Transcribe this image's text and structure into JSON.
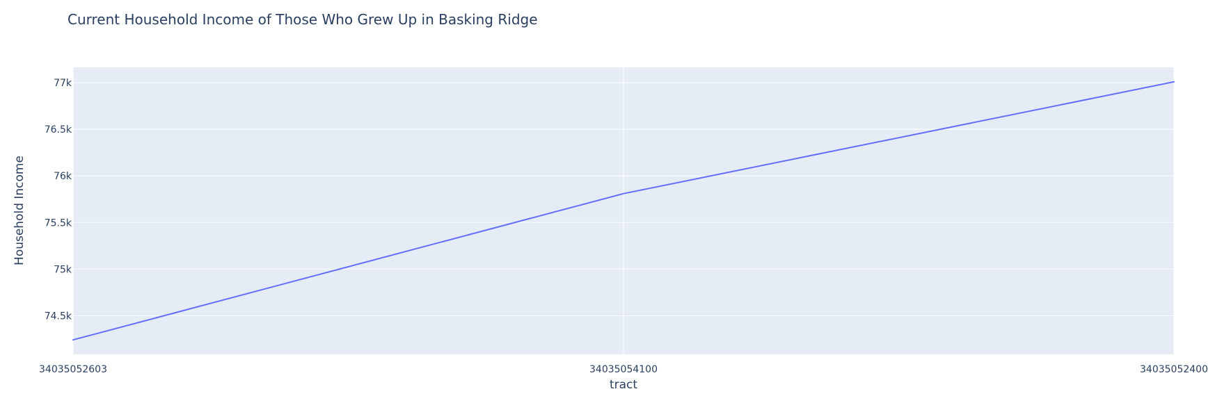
{
  "chart_data": {
    "type": "line",
    "title": "Current Household Income of Those Who Grew Up in Basking Ridge",
    "xlabel": "tract",
    "ylabel": "Household Income",
    "categories": [
      "34035052603",
      "34035054100",
      "34035052400"
    ],
    "series": [
      {
        "values": [
          74240,
          75810,
          77010
        ],
        "color": "#636efa"
      }
    ],
    "yticks": [
      {
        "value": 74500,
        "label": "74.5k"
      },
      {
        "value": 75000,
        "label": "75k"
      },
      {
        "value": 75500,
        "label": "75.5k"
      },
      {
        "value": 76000,
        "label": "76k"
      },
      {
        "value": 76500,
        "label": "76.5k"
      },
      {
        "value": 77000,
        "label": "77k"
      }
    ],
    "ylim": [
      74085,
      77165
    ],
    "grid": true,
    "plot_background": "#e5ecf6",
    "grid_color": "#ffffff"
  }
}
